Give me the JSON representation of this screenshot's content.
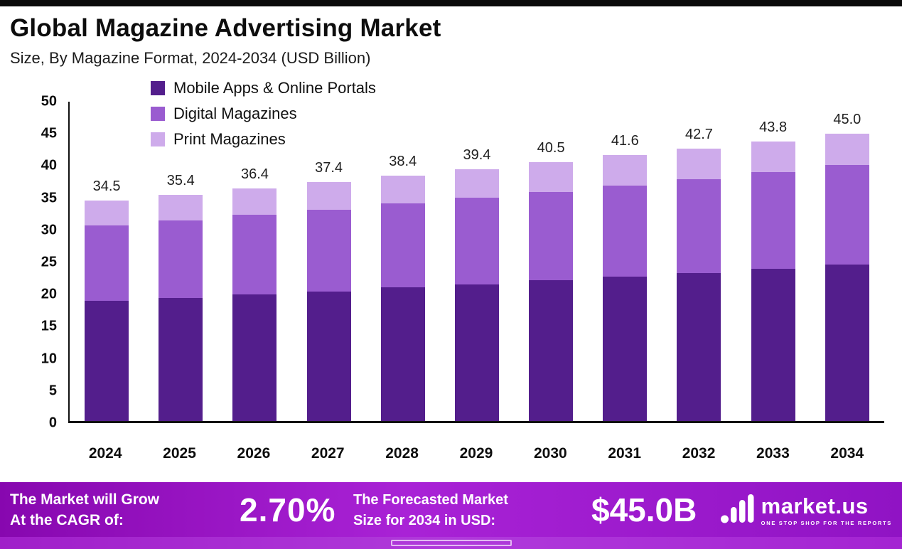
{
  "page": {
    "title": "Global Magazine Advertising Market",
    "subtitle": "Size, By Magazine Format, 2024-2034 (USD Billion)"
  },
  "chart_data": {
    "type": "bar",
    "stacked": true,
    "title": "Global Magazine Advertising Market",
    "subtitle": "Size, By Magazine Format, 2024-2034 (USD Billion)",
    "xlabel": "",
    "ylabel": "USD Billion",
    "ylim": [
      0,
      50
    ],
    "yticks": [
      "0",
      "5",
      "10",
      "15",
      "20",
      "25",
      "30",
      "35",
      "40",
      "45",
      "50"
    ],
    "grid": false,
    "legend_position": "top-left-inside",
    "categories": [
      "2024",
      "2025",
      "2026",
      "2027",
      "2028",
      "2029",
      "2030",
      "2031",
      "2032",
      "2033",
      "2034"
    ],
    "series": [
      {
        "name": "Mobile Apps & Online Portals",
        "color": "#531E8C",
        "values": [
          18.8,
          19.3,
          19.8,
          20.3,
          20.9,
          21.4,
          22.0,
          22.6,
          23.2,
          23.8,
          24.5
        ]
      },
      {
        "name": "Digital Magazines",
        "color": "#9A5CD0",
        "values": [
          11.8,
          12.1,
          12.5,
          12.8,
          13.2,
          13.6,
          13.9,
          14.3,
          14.7,
          15.2,
          15.6
        ]
      },
      {
        "name": "Print Magazines",
        "color": "#CEABEB",
        "values": [
          3.9,
          4.0,
          4.1,
          4.3,
          4.3,
          4.4,
          4.6,
          4.7,
          4.8,
          4.8,
          4.9
        ]
      }
    ],
    "total_labels": [
      "34.5",
      "35.4",
      "36.4",
      "37.4",
      "38.4",
      "39.4",
      "40.5",
      "41.6",
      "42.7",
      "43.8",
      "45.0"
    ]
  },
  "footer": {
    "cagr_label_lines": [
      "The Market will Grow",
      "At the CAGR of:"
    ],
    "cagr_value": "2.70%",
    "forecast_label_lines": [
      "The Forecasted Market",
      "Size for 2034 in USD:"
    ],
    "forecast_value": "$45.0B",
    "brand": {
      "name": "market.us",
      "tagline": "ONE STOP SHOP FOR THE REPORTS"
    },
    "colors": {
      "banner_left": "#8707AF",
      "banner_mid": "#A922D6",
      "banner_right": "#9013C4"
    }
  }
}
